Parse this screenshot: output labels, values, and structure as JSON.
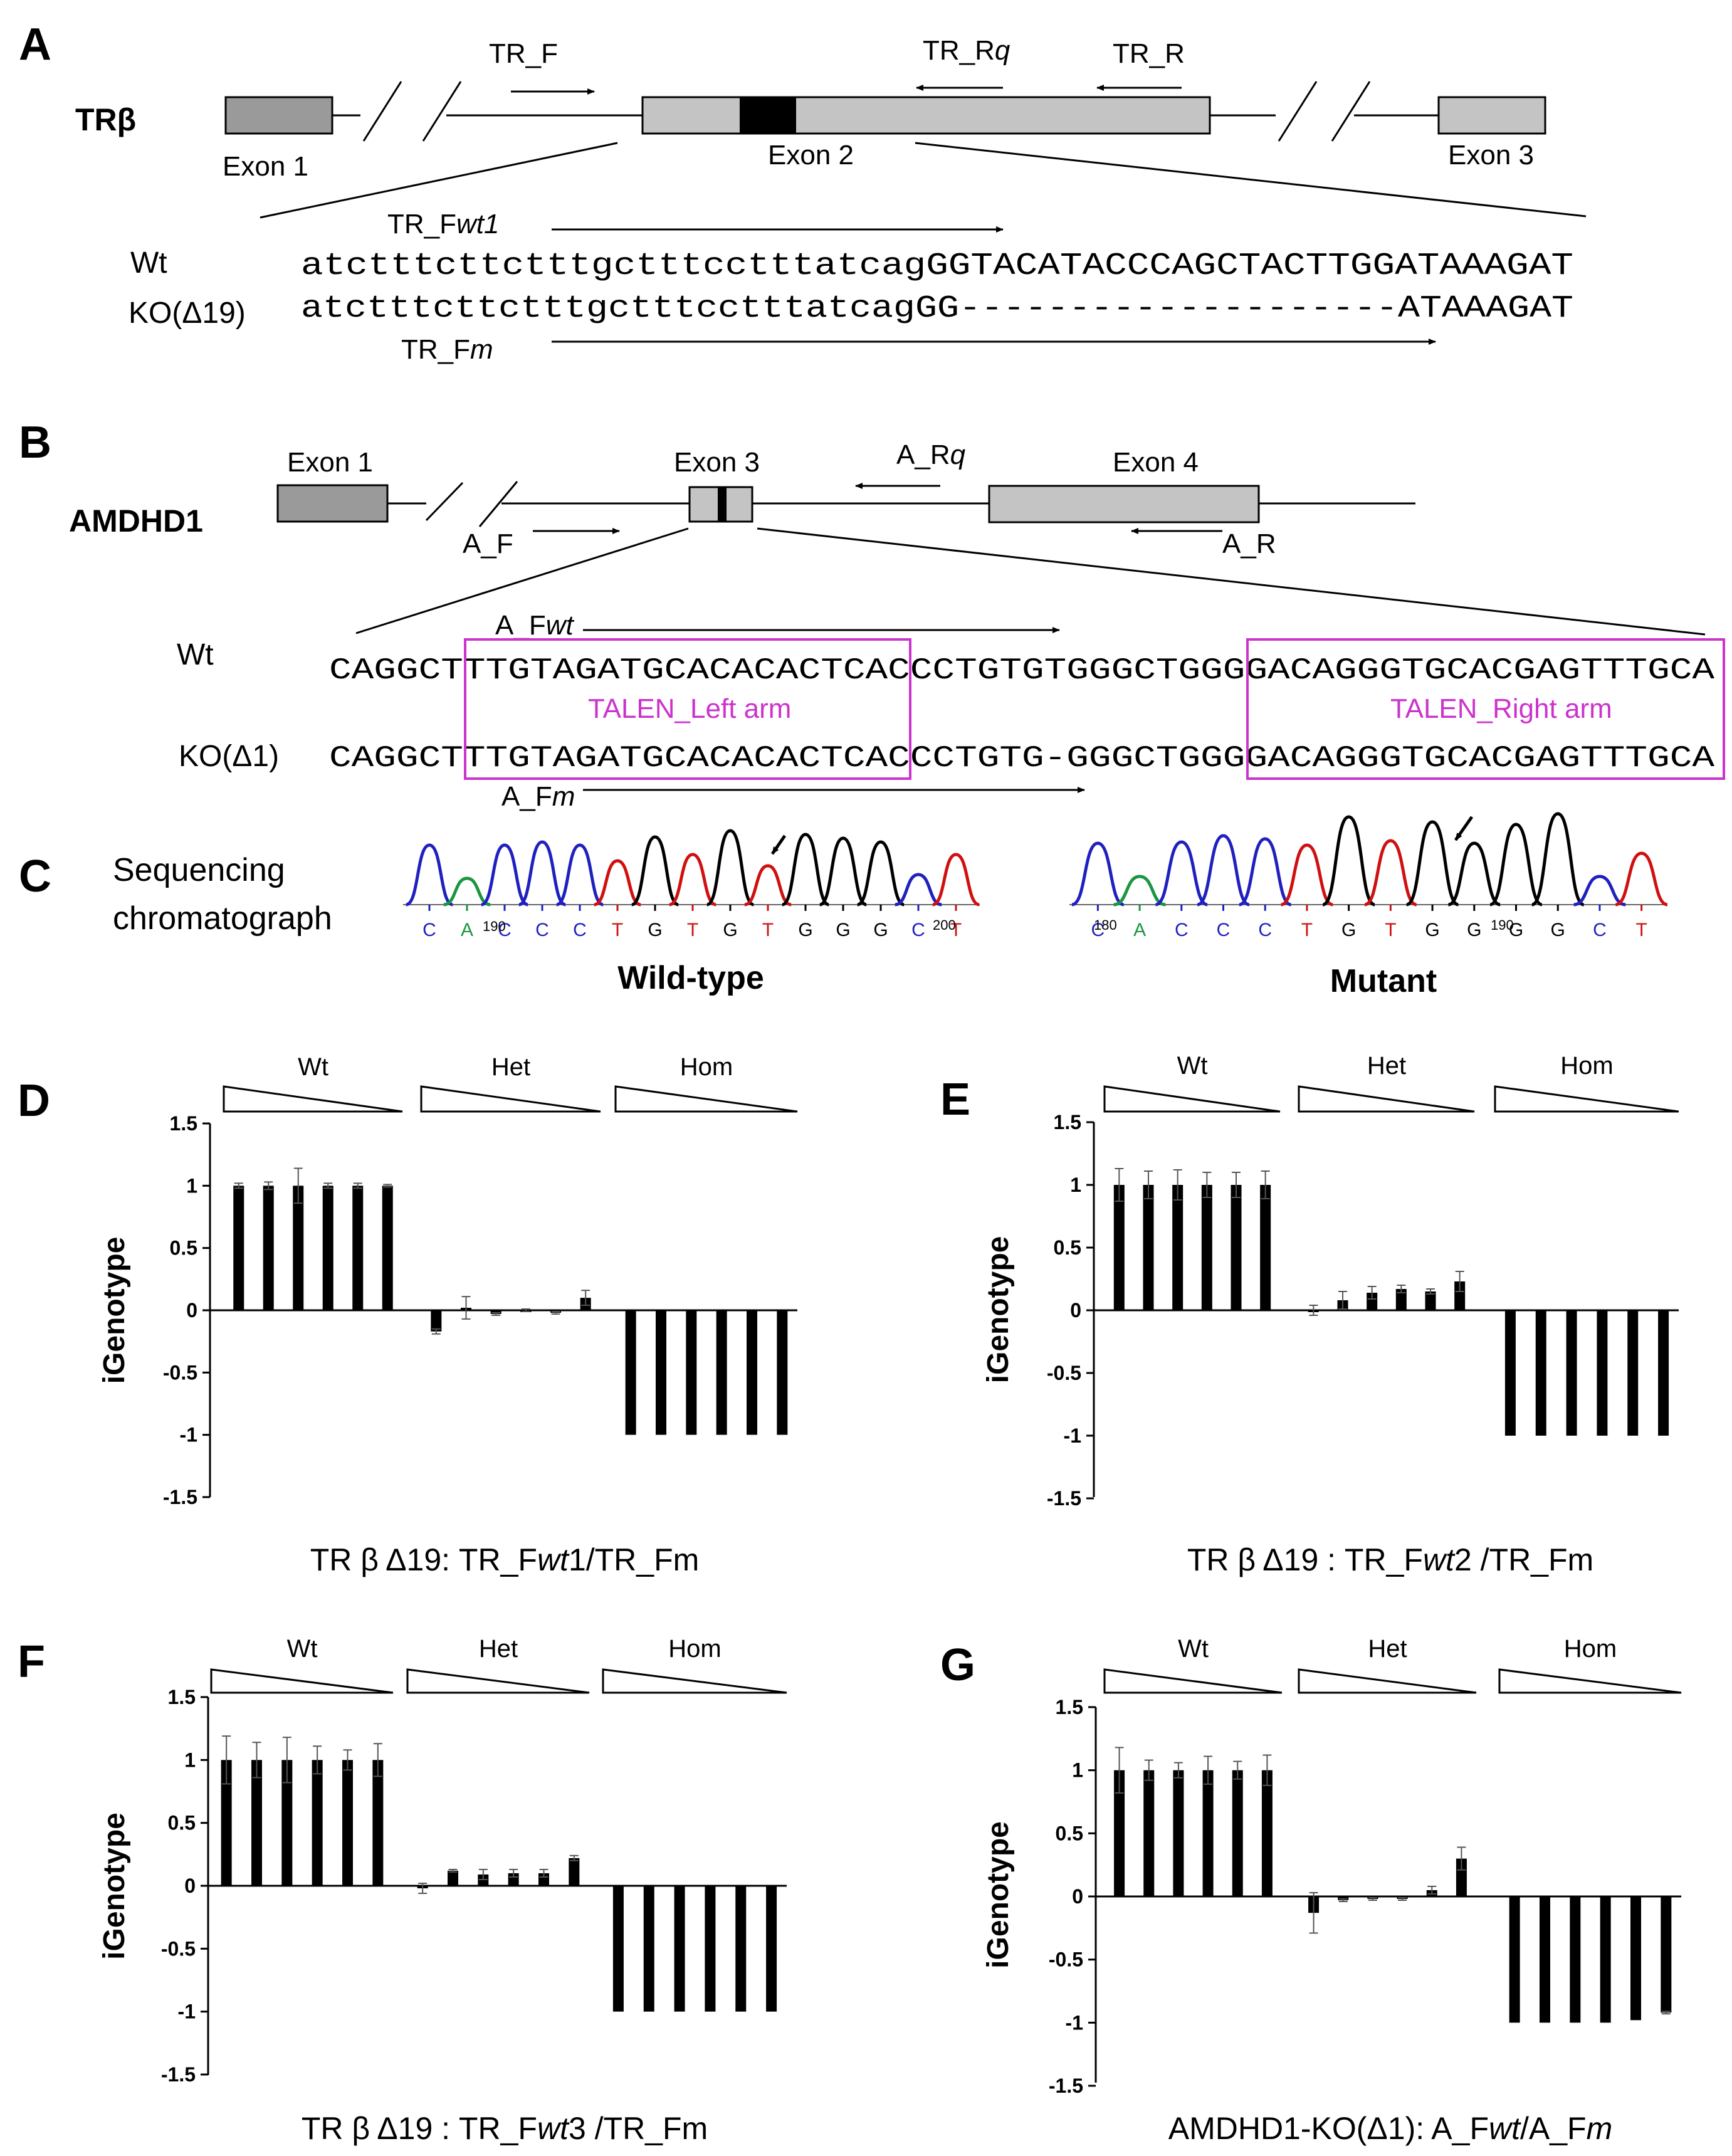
{
  "panels": {
    "a": "A",
    "b": "B",
    "c": "C",
    "d": "D",
    "e": "E",
    "f": "F",
    "g": "G"
  },
  "panel_a": {
    "gene": "TRβ",
    "exon1": "Exon 1",
    "exon2": "Exon 2",
    "exon3": "Exon 3",
    "primer_f": "TR_F",
    "primer_rq_base": "TR_R",
    "primer_rq_italic": "q",
    "primer_r": "TR_R",
    "primer_fwt1_base": "TR_F",
    "primer_fwt1_italic": "wt1",
    "primer_fm_base": "TR_F",
    "primer_fm_italic": "m",
    "wt_label": "Wt",
    "ko_label": "KO(Δ19)",
    "wt_seq": "atctttcttctttgctttcctttatcagGGTACATACCCAGCTACTTGGATAAAGAT",
    "ko_seq": "atctttcttctttgctttcctttatcagGG--------------------ATAAAGAT"
  },
  "panel_b": {
    "gene": "AMDHD1",
    "exon1": "Exon 1",
    "exon3": "Exon 3",
    "exon4": "Exon 4",
    "primer_f": "A_F",
    "primer_rq_base": "A_R",
    "primer_rq_italic": "q",
    "primer_r": "A_R",
    "primer_fwt_base": "A_F",
    "primer_fwt_italic": "wt",
    "primer_fm_base": "A_F",
    "primer_fm_italic": "m",
    "wt_label": "Wt",
    "ko_label": "KO(Δ1)",
    "wt_seq": "CAGGCTTTGTAGATGCACACACTCACCCTGTGTGGGCTGGGGACAGGGTGCACGAGTTTGCA",
    "ko_seq": "CAGGCTTTGTAGATGCACACACTCACCCTGTG-GGGCTGGGGACAGGGTGCACGAGTTTGCA",
    "talen_left": "TALEN_Left arm",
    "talen_right": "TALEN_Right arm"
  },
  "panel_c": {
    "title_line1": "Sequencing",
    "title_line2": "chromatograph",
    "wt_caption": "Wild-type",
    "mut_caption": "Mutant",
    "wt_bases": [
      "C",
      "A",
      "C",
      "C",
      "C",
      "T",
      "G",
      "T",
      "G",
      "T",
      "G",
      "G",
      "G",
      "C",
      "T"
    ],
    "wt_pos_190": "190",
    "wt_pos_200": "200",
    "mut_bases": [
      "C",
      "A",
      "C",
      "C",
      "C",
      "T",
      "G",
      "T",
      "G",
      "G",
      "G",
      "G",
      "C",
      "T"
    ],
    "mut_pos_180": "180",
    "mut_pos_190": "190",
    "base_colors": {
      "A": "#1a9641",
      "C": "#2020c0",
      "G": "#000000",
      "T": "#d01010"
    }
  },
  "chart_data": [
    {
      "panel": "D",
      "type": "bar",
      "ylabel": "iGenotype",
      "groups": [
        "Wt",
        "Het",
        "Hom"
      ],
      "caption": "TR β Δ19: TR_Fwt1/TR_Fm",
      "caption_parts": [
        "TR β Δ19: TR_F",
        "wt",
        "1/TR_Fm"
      ],
      "yticks": [
        "1.5",
        "1",
        "0.5",
        "0",
        "-0.5",
        "-1",
        "-1.5"
      ],
      "ylim": [
        -1.5,
        1.5
      ],
      "values": [
        1,
        1,
        1,
        1,
        1,
        1,
        -0.17,
        0.02,
        -0.03,
        0,
        -0.02,
        0.1,
        -1,
        -1,
        -1,
        -1,
        -1,
        -1
      ],
      "errors": [
        0.02,
        0.03,
        0.14,
        0.02,
        0.02,
        0.01,
        0.02,
        0.09,
        0.01,
        0.01,
        0.01,
        0.06,
        0,
        0,
        0,
        0,
        0,
        0
      ]
    },
    {
      "panel": "E",
      "type": "bar",
      "ylabel": "iGenotype",
      "groups": [
        "Wt",
        "Het",
        "Hom"
      ],
      "caption": "TR β Δ19 : TR_Fwt2 /TR_Fm",
      "caption_parts": [
        "TR β Δ19 : TR_F",
        "wt",
        "2 /TR_Fm"
      ],
      "yticks": [
        "1.5",
        "1",
        "0.5",
        "0",
        "-0.5",
        "-1",
        "-1.5"
      ],
      "ylim": [
        -1.5,
        1.5
      ],
      "values": [
        1,
        1,
        1,
        1,
        1,
        1,
        0,
        0.08,
        0.14,
        0.17,
        0.15,
        0.23,
        -1,
        -1,
        -1,
        -1,
        -1,
        -1
      ],
      "errors": [
        0.13,
        0.11,
        0.12,
        0.1,
        0.1,
        0.11,
        0.04,
        0.07,
        0.05,
        0.03,
        0.02,
        0.08,
        0,
        0,
        0,
        0,
        0,
        0
      ]
    },
    {
      "panel": "F",
      "type": "bar",
      "ylabel": "iGenotype",
      "groups": [
        "Wt",
        "Het",
        "Hom"
      ],
      "caption": "TR β Δ19 : TR_Fwt3 /TR_Fm",
      "caption_parts": [
        "TR β Δ19 : TR_F",
        "wt",
        "3 /TR_Fm"
      ],
      "yticks": [
        "1.5",
        "1",
        "0.5",
        "0",
        "-0.5",
        "-1",
        "-1.5"
      ],
      "ylim": [
        -1.5,
        1.5
      ],
      "values": [
        1,
        1,
        1,
        1,
        1,
        1,
        -0.02,
        0.12,
        0.09,
        0.1,
        0.1,
        0.22,
        -1,
        -1,
        -1,
        -1,
        -1,
        -1
      ],
      "errors": [
        0.19,
        0.14,
        0.18,
        0.11,
        0.08,
        0.13,
        0.04,
        0.01,
        0.04,
        0.03,
        0.03,
        0.02,
        0,
        0,
        0,
        0,
        0,
        0
      ]
    },
    {
      "panel": "G",
      "type": "bar",
      "ylabel": "iGenotype",
      "groups": [
        "Wt",
        "Het",
        "Hom"
      ],
      "caption": "AMDHD1-KO(Δ1): A_Fwt/A_Fm",
      "caption_parts": [
        "AMDHD1-KO(Δ1): A_F",
        "wt",
        "/A_F",
        "m"
      ],
      "yticks": [
        "1.5",
        "1",
        "0.5",
        "0",
        "-0.5",
        "-1",
        "-1.5"
      ],
      "ylim": [
        -1.5,
        1.5
      ],
      "values": [
        1,
        1,
        1,
        1,
        1,
        1,
        -0.13,
        -0.03,
        -0.02,
        -0.02,
        0.05,
        0.3,
        -1,
        -1,
        -1,
        -1,
        -0.98,
        -0.92
      ],
      "errors": [
        0.18,
        0.08,
        0.06,
        0.11,
        0.07,
        0.12,
        0.16,
        0.01,
        0.01,
        0.01,
        0.03,
        0.09,
        0,
        0,
        0,
        0,
        0,
        0.01
      ]
    }
  ]
}
